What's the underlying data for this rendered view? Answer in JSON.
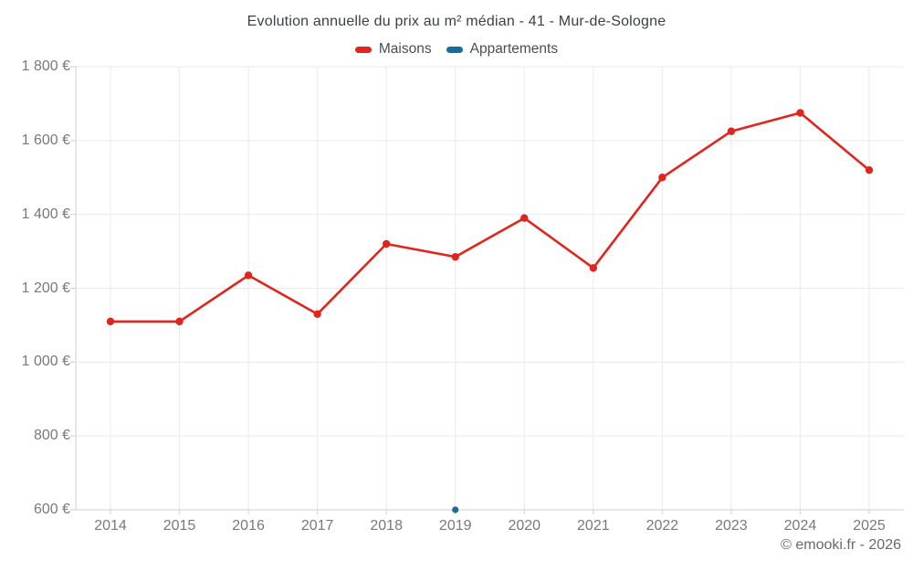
{
  "header": {
    "title": "Evolution annuelle du prix au m² médian - 41 - Mur-de-Sologne"
  },
  "footer": {
    "credit": "© emooki.fr - 2026"
  },
  "theme": {
    "background": "#ffffff",
    "grid_color": "#eaeaea",
    "axis_color": "#cfcfcf",
    "tick_text_color": "#77797d",
    "title_color": "#3d4045"
  },
  "chart_data": {
    "type": "line",
    "title": "Evolution annuelle du prix au m² médian - 41 - Mur-de-Sologne",
    "xlabel": "",
    "ylabel": "",
    "categories": [
      "2014",
      "2015",
      "2016",
      "2017",
      "2018",
      "2019",
      "2020",
      "2021",
      "2022",
      "2023",
      "2024",
      "2025"
    ],
    "series": [
      {
        "name": "Maisons",
        "color": "#e1251c",
        "unit": "€/m²",
        "values": [
          1110,
          1110,
          1235,
          1130,
          1320,
          1285,
          1390,
          1255,
          1500,
          1625,
          1675,
          1520
        ]
      },
      {
        "name": "Appartements",
        "color": "#166d9d",
        "unit": "€/m²",
        "values": [
          null,
          null,
          null,
          null,
          null,
          600,
          null,
          null,
          null,
          null,
          null,
          null
        ]
      }
    ],
    "ylim": [
      600,
      1800
    ],
    "y_ticks": [
      600,
      800,
      1000,
      1200,
      1400,
      1600,
      1800
    ],
    "y_tick_labels": [
      "600 €",
      "800 €",
      "1 000 €",
      "1 200 €",
      "1 400 €",
      "1 600 €",
      "1 800 €"
    ],
    "grid": true,
    "legend_position": "top"
  }
}
